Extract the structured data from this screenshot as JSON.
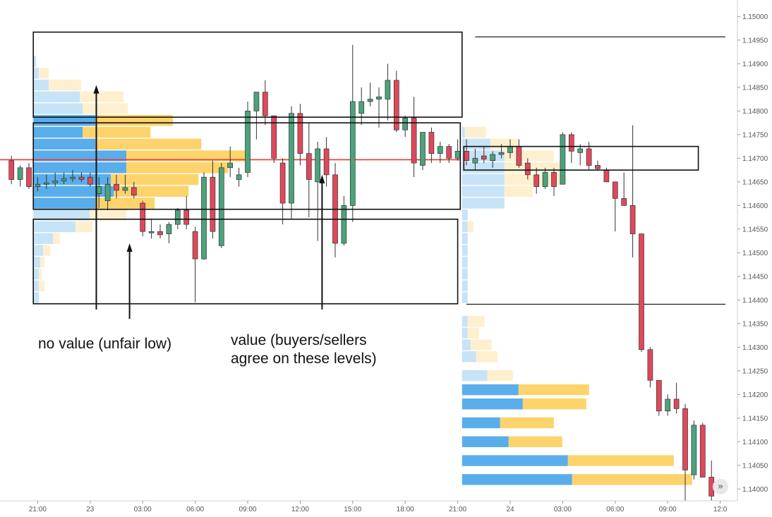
{
  "chart_data": {
    "type": "candlestick",
    "instrument": "",
    "title": "",
    "ylim": [
      1.13975,
      1.15035
    ],
    "y_ticks": [
      "1.15050",
      "1.15000",
      "1.14950",
      "1.14900",
      "1.14850",
      "1.14800",
      "1.14750",
      "1.14700",
      "1.14650",
      "1.14600",
      "1.14550",
      "1.14500",
      "1.14450",
      "1.14400",
      "1.14350",
      "1.14300",
      "1.14250",
      "1.14200",
      "1.14150",
      "1.14100",
      "1.14050",
      "1.14000"
    ],
    "y_tick_values": [
      1.1505,
      1.15,
      1.1495,
      1.149,
      1.1485,
      1.148,
      1.1475,
      1.147,
      1.1465,
      1.146,
      1.1455,
      1.145,
      1.1445,
      1.144,
      1.1435,
      1.143,
      1.1425,
      1.142,
      1.1415,
      1.141,
      1.1405,
      1.14
    ],
    "x_ticks": [
      "21:00",
      "23",
      "03:00",
      "06:00",
      "09:00",
      "12:00",
      "15:00",
      "18:00",
      "21:00",
      "24",
      "03:00",
      "06:00",
      "09:00",
      "12:0"
    ],
    "x_tick_index": [
      3.5,
      9.5,
      15.5,
      21.5,
      27.5,
      33.5,
      39.5,
      45.5,
      51.5,
      57.5,
      63.5,
      69.5,
      75.5,
      81.5
    ],
    "reference_line": {
      "price": 1.14697,
      "color": "#e53935"
    },
    "horizontal_lines": [
      {
        "price": 1.14957,
        "from_index": 53.5
      },
      {
        "price": 1.14391,
        "from_index": 52.5
      }
    ],
    "boxes": [
      {
        "from_index": 3.0,
        "to_index": 52.0,
        "top": 1.14967,
        "bottom": 1.14787
      },
      {
        "from_index": 3.0,
        "to_index": 51.8,
        "top": 1.14775,
        "bottom": 1.14592
      },
      {
        "from_index": 3.0,
        "to_index": 51.5,
        "top": 1.14571,
        "bottom": 1.14392
      },
      {
        "from_index": 52.2,
        "to_index": 79.0,
        "top": 1.14725,
        "bottom": 1.14675
      }
    ],
    "colors": {
      "up": "#4aa37c",
      "down": "#e0485b",
      "wick": "#333333",
      "vol_buy": "#5aadeb",
      "vol_sell": "#fdd36b",
      "vol_buy_light": "#c7e3f7",
      "vol_sell_light": "#fef0cf"
    },
    "candles": [
      {
        "t": 0,
        "o": 1.14695,
        "h": 1.14705,
        "l": 1.14645,
        "c": 1.14655
      },
      {
        "t": 1,
        "o": 1.14655,
        "h": 1.14685,
        "l": 1.1464,
        "c": 1.1468
      },
      {
        "t": 2,
        "o": 1.1468,
        "h": 1.1469,
        "l": 1.14635,
        "c": 1.1464
      },
      {
        "t": 3,
        "o": 1.1464,
        "h": 1.1466,
        "l": 1.1463,
        "c": 1.14645
      },
      {
        "t": 4,
        "o": 1.14645,
        "h": 1.14665,
        "l": 1.14635,
        "c": 1.14648
      },
      {
        "t": 5,
        "o": 1.14648,
        "h": 1.1467,
        "l": 1.1464,
        "c": 1.14652
      },
      {
        "t": 6,
        "o": 1.14652,
        "h": 1.1467,
        "l": 1.14645,
        "c": 1.14657
      },
      {
        "t": 7,
        "o": 1.14657,
        "h": 1.14675,
        "l": 1.1465,
        "c": 1.1466
      },
      {
        "t": 8,
        "o": 1.1466,
        "h": 1.1467,
        "l": 1.1465,
        "c": 1.14655
      },
      {
        "t": 9,
        "o": 1.1466,
        "h": 1.1467,
        "l": 1.1464,
        "c": 1.14645
      },
      {
        "t": 10,
        "o": 1.14625,
        "h": 1.1466,
        "l": 1.14595,
        "c": 1.1464
      },
      {
        "t": 11,
        "o": 1.1461,
        "h": 1.1466,
        "l": 1.1459,
        "c": 1.14645
      },
      {
        "t": 12,
        "o": 1.14645,
        "h": 1.14665,
        "l": 1.14615,
        "c": 1.14632
      },
      {
        "t": 13,
        "o": 1.14632,
        "h": 1.14665,
        "l": 1.14625,
        "c": 1.14638
      },
      {
        "t": 14,
        "o": 1.14638,
        "h": 1.1465,
        "l": 1.14615,
        "c": 1.14622
      },
      {
        "t": 15,
        "o": 1.14605,
        "h": 1.1461,
        "l": 1.14535,
        "c": 1.14545
      },
      {
        "t": 16,
        "o": 1.14545,
        "h": 1.1457,
        "l": 1.1453,
        "c": 1.14545
      },
      {
        "t": 17,
        "o": 1.14545,
        "h": 1.1456,
        "l": 1.1453,
        "c": 1.14538
      },
      {
        "t": 18,
        "o": 1.1454,
        "h": 1.14565,
        "l": 1.1452,
        "c": 1.1456
      },
      {
        "t": 19,
        "o": 1.1456,
        "h": 1.14595,
        "l": 1.1455,
        "c": 1.1459
      },
      {
        "t": 20,
        "o": 1.1459,
        "h": 1.1462,
        "l": 1.1455,
        "c": 1.1456
      },
      {
        "t": 21,
        "o": 1.14545,
        "h": 1.14555,
        "l": 1.14395,
        "c": 1.14487
      },
      {
        "t": 22,
        "o": 1.14487,
        "h": 1.1467,
        "l": 1.14485,
        "c": 1.1466
      },
      {
        "t": 23,
        "o": 1.1466,
        "h": 1.14695,
        "l": 1.1453,
        "c": 1.14545
      },
      {
        "t": 24,
        "o": 1.14515,
        "h": 1.1469,
        "l": 1.1451,
        "c": 1.1468
      },
      {
        "t": 25,
        "o": 1.1468,
        "h": 1.14725,
        "l": 1.1466,
        "c": 1.1469
      },
      {
        "t": 26,
        "o": 1.14655,
        "h": 1.1468,
        "l": 1.1464,
        "c": 1.14665
      },
      {
        "t": 27,
        "o": 1.1467,
        "h": 1.1482,
        "l": 1.1466,
        "c": 1.148
      },
      {
        "t": 28,
        "o": 1.148,
        "h": 1.1483,
        "l": 1.1474,
        "c": 1.1484
      },
      {
        "t": 29,
        "o": 1.1484,
        "h": 1.14865,
        "l": 1.1477,
        "c": 1.1479
      },
      {
        "t": 30,
        "o": 1.1479,
        "h": 1.1479,
        "l": 1.1469,
        "c": 1.147
      },
      {
        "t": 31,
        "o": 1.1469,
        "h": 1.147,
        "l": 1.1456,
        "c": 1.14605
      },
      {
        "t": 32,
        "o": 1.14605,
        "h": 1.1481,
        "l": 1.1457,
        "c": 1.14795
      },
      {
        "t": 33,
        "o": 1.14795,
        "h": 1.14815,
        "l": 1.14685,
        "c": 1.1471
      },
      {
        "t": 34,
        "o": 1.1471,
        "h": 1.14775,
        "l": 1.14575,
        "c": 1.14655
      },
      {
        "t": 35,
        "o": 1.1465,
        "h": 1.14735,
        "l": 1.14525,
        "c": 1.1472
      },
      {
        "t": 36,
        "o": 1.1472,
        "h": 1.14745,
        "l": 1.1464,
        "c": 1.14665
      },
      {
        "t": 37,
        "o": 1.14665,
        "h": 1.1469,
        "l": 1.1449,
        "c": 1.1452
      },
      {
        "t": 38,
        "o": 1.1452,
        "h": 1.1462,
        "l": 1.14515,
        "c": 1.146
      },
      {
        "t": 39,
        "o": 1.146,
        "h": 1.1494,
        "l": 1.14565,
        "c": 1.1482
      },
      {
        "t": 40,
        "o": 1.14795,
        "h": 1.1485,
        "l": 1.1477,
        "c": 1.1482
      },
      {
        "t": 41,
        "o": 1.1482,
        "h": 1.1486,
        "l": 1.1481,
        "c": 1.14825
      },
      {
        "t": 42,
        "o": 1.14825,
        "h": 1.1485,
        "l": 1.14765,
        "c": 1.1483
      },
      {
        "t": 43,
        "o": 1.14825,
        "h": 1.149,
        "l": 1.1478,
        "c": 1.14865
      },
      {
        "t": 44,
        "o": 1.14865,
        "h": 1.14885,
        "l": 1.14755,
        "c": 1.1476
      },
      {
        "t": 45,
        "o": 1.1476,
        "h": 1.1479,
        "l": 1.14745,
        "c": 1.14785
      },
      {
        "t": 46,
        "o": 1.14785,
        "h": 1.1483,
        "l": 1.1466,
        "c": 1.1469
      },
      {
        "t": 47,
        "o": 1.14685,
        "h": 1.14755,
        "l": 1.14675,
        "c": 1.14755
      },
      {
        "t": 48,
        "o": 1.14755,
        "h": 1.14765,
        "l": 1.1469,
        "c": 1.1471
      },
      {
        "t": 49,
        "o": 1.1471,
        "h": 1.14735,
        "l": 1.1469,
        "c": 1.14725
      },
      {
        "t": 50,
        "o": 1.14725,
        "h": 1.1473,
        "l": 1.1469,
        "c": 1.147
      },
      {
        "t": 51,
        "o": 1.147,
        "h": 1.1474,
        "l": 1.14695,
        "c": 1.14715
      },
      {
        "t": 52,
        "o": 1.14715,
        "h": 1.1474,
        "l": 1.14685,
        "c": 1.14695
      },
      {
        "t": 53,
        "o": 1.1469,
        "h": 1.1472,
        "l": 1.14675,
        "c": 1.147
      },
      {
        "t": 54,
        "o": 1.14705,
        "h": 1.14725,
        "l": 1.1469,
        "c": 1.14698
      },
      {
        "t": 55,
        "o": 1.14695,
        "h": 1.14715,
        "l": 1.1468,
        "c": 1.14708
      },
      {
        "t": 56,
        "o": 1.14708,
        "h": 1.1473,
        "l": 1.147,
        "c": 1.14712
      },
      {
        "t": 57,
        "o": 1.14712,
        "h": 1.1474,
        "l": 1.147,
        "c": 1.14725
      },
      {
        "t": 58,
        "o": 1.14725,
        "h": 1.1474,
        "l": 1.1468,
        "c": 1.14685
      },
      {
        "t": 59,
        "o": 1.1469,
        "h": 1.147,
        "l": 1.14655,
        "c": 1.14665
      },
      {
        "t": 60,
        "o": 1.14665,
        "h": 1.1468,
        "l": 1.14625,
        "c": 1.1464
      },
      {
        "t": 61,
        "o": 1.1464,
        "h": 1.1468,
        "l": 1.14635,
        "c": 1.1467
      },
      {
        "t": 62,
        "o": 1.1467,
        "h": 1.1468,
        "l": 1.1462,
        "c": 1.1464
      },
      {
        "t": 63,
        "o": 1.14645,
        "h": 1.14755,
        "l": 1.14645,
        "c": 1.1475
      },
      {
        "t": 64,
        "o": 1.1475,
        "h": 1.14755,
        "l": 1.1469,
        "c": 1.14715
      },
      {
        "t": 65,
        "o": 1.14712,
        "h": 1.1473,
        "l": 1.14685,
        "c": 1.1472
      },
      {
        "t": 66,
        "o": 1.1472,
        "h": 1.14735,
        "l": 1.14675,
        "c": 1.14685
      },
      {
        "t": 67,
        "o": 1.14685,
        "h": 1.14695,
        "l": 1.14675,
        "c": 1.14678
      },
      {
        "t": 68,
        "o": 1.14675,
        "h": 1.1468,
        "l": 1.1465,
        "c": 1.1465
      },
      {
        "t": 69,
        "o": 1.1465,
        "h": 1.1465,
        "l": 1.14545,
        "c": 1.14615
      },
      {
        "t": 70,
        "o": 1.14615,
        "h": 1.1467,
        "l": 1.146,
        "c": 1.146
      },
      {
        "t": 71,
        "o": 1.146,
        "h": 1.1477,
        "l": 1.1449,
        "c": 1.1454
      },
      {
        "t": 72,
        "o": 1.1454,
        "h": 1.1454,
        "l": 1.1429,
        "c": 1.14295
      },
      {
        "t": 73,
        "o": 1.14295,
        "h": 1.143,
        "l": 1.14215,
        "c": 1.1423
      },
      {
        "t": 74,
        "o": 1.1423,
        "h": 1.1423,
        "l": 1.14155,
        "c": 1.14165
      },
      {
        "t": 75,
        "o": 1.14165,
        "h": 1.142,
        "l": 1.14155,
        "c": 1.1419
      },
      {
        "t": 76,
        "o": 1.1419,
        "h": 1.14225,
        "l": 1.1416,
        "c": 1.1417
      },
      {
        "t": 77,
        "o": 1.1417,
        "h": 1.1418,
        "l": 1.13975,
        "c": 1.1404
      },
      {
        "t": 78,
        "o": 1.1403,
        "h": 1.14145,
        "l": 1.1402,
        "c": 1.14135
      },
      {
        "t": 79,
        "o": 1.14135,
        "h": 1.1414,
        "l": 1.14025,
        "c": 1.14025
      },
      {
        "t": 80,
        "o": 1.14025,
        "h": 1.1406,
        "l": 1.13975,
        "c": 1.13985
      }
    ],
    "volume_profiles": [
      {
        "left_index": 3.0,
        "rows": [
          {
            "price": 1.14905,
            "buy": 0.02,
            "sell": 0.0,
            "light": true
          },
          {
            "price": 1.1488,
            "buy": 0.04,
            "sell": 0.07,
            "light": true
          },
          {
            "price": 1.14855,
            "buy": 0.11,
            "sell": 0.23,
            "light": true
          },
          {
            "price": 1.1483,
            "buy": 0.33,
            "sell": 0.31,
            "light": true
          },
          {
            "price": 1.14805,
            "buy": 0.35,
            "sell": 0.32,
            "light": true
          },
          {
            "price": 1.1478,
            "buy": 0.44,
            "sell": 0.55,
            "light": false
          },
          {
            "price": 1.14755,
            "buy": 0.35,
            "sell": 0.48,
            "light": false
          },
          {
            "price": 1.1473,
            "buy": 0.44,
            "sell": 0.75,
            "light": false
          },
          {
            "price": 1.14705,
            "buy": 0.66,
            "sell": 0.85,
            "light": false
          },
          {
            "price": 1.1468,
            "buy": 0.66,
            "sell": 0.72,
            "light": false
          },
          {
            "price": 1.14655,
            "buy": 0.55,
            "sell": 0.62,
            "light": false
          },
          {
            "price": 1.1463,
            "buy": 0.57,
            "sell": 0.53,
            "light": false
          },
          {
            "price": 1.14605,
            "buy": 0.44,
            "sell": 0.42,
            "light": false
          },
          {
            "price": 1.1458,
            "buy": 0.4,
            "sell": 0.26,
            "light": true
          },
          {
            "price": 1.14555,
            "buy": 0.3,
            "sell": 0.12,
            "light": true
          },
          {
            "price": 1.1453,
            "buy": 0.14,
            "sell": 0.05,
            "light": true
          },
          {
            "price": 1.14505,
            "buy": 0.07,
            "sell": 0.05,
            "light": true
          },
          {
            "price": 1.1448,
            "buy": 0.05,
            "sell": 0.03,
            "light": true
          },
          {
            "price": 1.14455,
            "buy": 0.04,
            "sell": 0.02,
            "light": true
          },
          {
            "price": 1.1443,
            "buy": 0.04,
            "sell": 0.04,
            "light": true
          },
          {
            "price": 1.14405,
            "buy": 0.04,
            "sell": 0.0,
            "light": true
          }
        ]
      },
      {
        "left_index": 52.0,
        "rows": [
          {
            "price": 1.14755,
            "buy": 0.02,
            "sell": 0.15,
            "light": true
          },
          {
            "price": 1.1473,
            "buy": 0.2,
            "sell": 0.2,
            "light": true
          },
          {
            "price": 1.14705,
            "buy": 0.3,
            "sell": 0.35,
            "light": true
          },
          {
            "price": 1.1468,
            "buy": 0.3,
            "sell": 0.4,
            "light": true
          },
          {
            "price": 1.14655,
            "buy": 0.3,
            "sell": 0.4,
            "light": true
          },
          {
            "price": 1.1463,
            "buy": 0.3,
            "sell": 0.2,
            "light": true
          },
          {
            "price": 1.14605,
            "buy": 0.3,
            "sell": 0.0,
            "light": true
          },
          {
            "price": 1.1458,
            "buy": 0.04,
            "sell": 0.0,
            "light": true
          },
          {
            "price": 1.14555,
            "buy": 0.04,
            "sell": 0.04,
            "light": true
          },
          {
            "price": 1.1453,
            "buy": 0.04,
            "sell": 0.0,
            "light": true
          },
          {
            "price": 1.14505,
            "buy": 0.04,
            "sell": 0.0,
            "light": true
          },
          {
            "price": 1.1448,
            "buy": 0.04,
            "sell": 0.0,
            "light": true
          },
          {
            "price": 1.14455,
            "buy": 0.04,
            "sell": 0.0,
            "light": true
          },
          {
            "price": 1.1443,
            "buy": 0.04,
            "sell": 0.0,
            "light": true
          },
          {
            "price": 1.14405,
            "buy": 0.04,
            "sell": 0.0,
            "light": true
          },
          {
            "price": 1.14355,
            "buy": 0.04,
            "sell": 0.12,
            "light": true
          },
          {
            "price": 1.1433,
            "buy": 0.04,
            "sell": 0.08,
            "light": true
          },
          {
            "price": 1.14305,
            "buy": 0.06,
            "sell": 0.15,
            "light": true
          },
          {
            "price": 1.1428,
            "buy": 0.1,
            "sell": 0.15,
            "light": true
          },
          {
            "price": 1.1424,
            "buy": 0.18,
            "sell": 0.18,
            "light": true
          },
          {
            "price": 1.1421,
            "buy": 0.4,
            "sell": 0.5,
            "light": false
          },
          {
            "price": 1.1418,
            "buy": 0.43,
            "sell": 0.45,
            "light": false
          },
          {
            "price": 1.1414,
            "buy": 0.27,
            "sell": 0.38,
            "light": false
          },
          {
            "price": 1.141,
            "buy": 0.33,
            "sell": 0.38,
            "light": false
          },
          {
            "price": 1.1406,
            "buy": 0.75,
            "sell": 0.75,
            "light": false
          },
          {
            "price": 1.1402,
            "buy": 0.78,
            "sell": 0.85,
            "light": false
          }
        ]
      }
    ],
    "arrows": [
      {
        "index": 10.2,
        "from_price": 1.1438,
        "to_price": 1.14855
      },
      {
        "index": 14.0,
        "from_price": 1.1436,
        "to_price": 1.1452
      },
      {
        "index": 36.0,
        "from_price": 1.1438,
        "to_price": 1.14665
      }
    ]
  },
  "annotations": {
    "no_value": "no value (unfair low)",
    "value_line1": "value (buyers/sellers",
    "value_line2": "agree on these levels)"
  },
  "nav": {
    "scroll_glyph": "»"
  }
}
